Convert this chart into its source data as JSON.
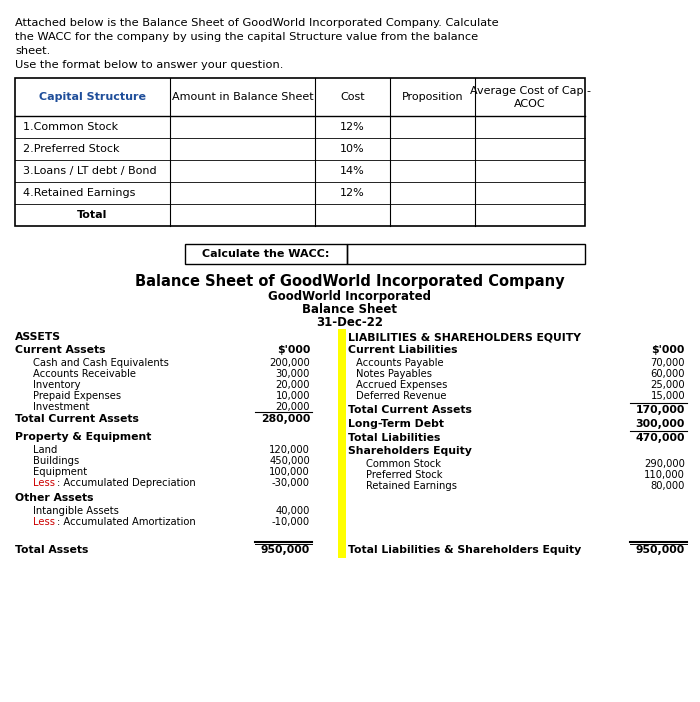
{
  "intro_text": "Attached below is the Balance Sheet of GoodWorld Incorporated Company. Calculate\nthe WACC for the company by using the capital Structure value from the balance\nsheet.\nUse the format below to answer your question.",
  "cap_structure_headers": [
    "Capital Structure",
    "Amount in Balance Sheet",
    "Cost",
    "Proposition",
    "Average Cost of Cap -\nACOC"
  ],
  "cap_structure_rows": [
    [
      "1.Common Stock",
      "",
      "12%",
      "",
      ""
    ],
    [
      "2.Preferred Stock",
      "",
      "10%",
      "",
      ""
    ],
    [
      "3.Loans / LT debt / Bond",
      "",
      "14%",
      "",
      ""
    ],
    [
      "4.Retained Earnings",
      "",
      "12%",
      "",
      ""
    ],
    [
      "Total",
      "",
      "",
      "",
      ""
    ]
  ],
  "wacc_label": "Calculate the WACC:",
  "bs_title": "Balance Sheet of GoodWorld Incorporated Company",
  "bs_subtitle1": "GoodWorld Incorporated",
  "bs_subtitle2": "Balance Sheet",
  "bs_subtitle3": "31-Dec-22",
  "assets_header": "ASSETS",
  "liab_header": "LIABILITIES & SHAREHOLDERS EQUITY",
  "current_assets_label": "Current Assets",
  "current_liab_label": "Current Liabilities",
  "dollar_label": "$'000",
  "assets_items": [
    [
      "Cash and Cash Equivalents",
      "200,000"
    ],
    [
      "Accounts Receivable",
      "30,000"
    ],
    [
      "Inventory",
      "20,000"
    ],
    [
      "Prepaid Expenses",
      "10,000"
    ],
    [
      "Investment",
      "20,000"
    ]
  ],
  "total_current_assets_left": [
    "Total Current Assets",
    "280,000"
  ],
  "property_equipment_label": "Property & Equipment",
  "property_items": [
    [
      "Land",
      "120,000"
    ],
    [
      "Buildings",
      "450,000"
    ],
    [
      "Equipment",
      "100,000"
    ],
    [
      "Less: Accumulated Depreciation",
      "-30,000"
    ]
  ],
  "other_assets_label": "Other Assets",
  "other_assets_items": [
    [
      "Intangible Assets",
      "40,000"
    ],
    [
      "Less: Accumulated Amortization",
      "-10,000"
    ]
  ],
  "total_assets": [
    "Total Assets",
    "950,000"
  ],
  "liab_items": [
    [
      "Accounts Payable",
      "70,000"
    ],
    [
      "Notes Payables",
      "60,000"
    ],
    [
      "Accrued Expenses",
      "25,000"
    ],
    [
      "Deferred Revenue",
      "15,000"
    ]
  ],
  "total_current_liab": [
    "Total Current Assets",
    "170,000"
  ],
  "long_term_debt": [
    "Long-Term Debt",
    "300,000"
  ],
  "total_liab": [
    "Total Liabilities",
    "470,000"
  ],
  "shareholders_equity_label": "Shareholders Equity",
  "equity_items": [
    [
      "Common Stock",
      "290,000"
    ],
    [
      "Preferred Stock",
      "110,000"
    ],
    [
      "Retained Earnings",
      "80,000"
    ]
  ],
  "total_liab_equity": [
    "Total Liabilities & Shareholders Equity",
    "950,000"
  ],
  "yellow_color": "#FFFF00",
  "red_color": "#CC0000",
  "blue_color": "#1F4E9A",
  "bg_color": "#FFFFFF",
  "border_color": "#000000"
}
